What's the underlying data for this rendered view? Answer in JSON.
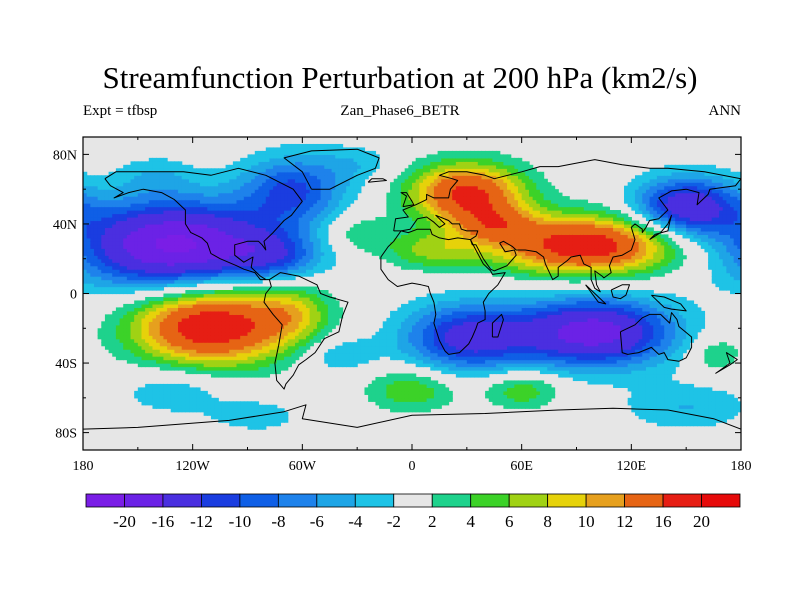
{
  "title": "Streamfunction Perturbation at 200 hPa (km2/s)",
  "left_string": "Expt = tfbsp",
  "center_string": "Zan_Phase6_BETR",
  "right_string": "ANN",
  "map": {
    "projection": "cylindrical-equidistant",
    "lon_range": [
      -180,
      180
    ],
    "lat_range": [
      -90,
      90
    ],
    "lon_ticks": [
      {
        "value": -180,
        "label": "180"
      },
      {
        "value": -120,
        "label": "120W"
      },
      {
        "value": -60,
        "label": "60W"
      },
      {
        "value": 0,
        "label": "0"
      },
      {
        "value": 60,
        "label": "60E"
      },
      {
        "value": 120,
        "label": "120E"
      },
      {
        "value": 180,
        "label": "180"
      }
    ],
    "lat_ticks": [
      {
        "value": 80,
        "label": "80N"
      },
      {
        "value": 40,
        "label": "40N"
      },
      {
        "value": 0,
        "label": "0"
      },
      {
        "value": -40,
        "label": "40S"
      },
      {
        "value": -80,
        "label": "80S"
      }
    ],
    "background_color": "#e6e6e6",
    "coastline_color": "#000000"
  },
  "colorbar": {
    "levels": [
      "-20",
      "-16",
      "-12",
      "-10",
      "-8",
      "-6",
      "-4",
      "-2",
      "2",
      "4",
      "6",
      "8",
      "10",
      "12",
      "16",
      "20"
    ],
    "colors": [
      "#7a1ee6",
      "#6b22e6",
      "#4a2fe0",
      "#1a3de0",
      "#0f5fe6",
      "#1e82eb",
      "#1ea5e6",
      "#1ec3e6",
      "#e6e6e6",
      "#1ed28c",
      "#3cd228",
      "#a0d214",
      "#e6d20a",
      "#e6a01e",
      "#e66414",
      "#e61e14",
      "#e60a0a"
    ]
  },
  "field_blobs": [
    {
      "lon": -130,
      "lat": 28,
      "value": -21,
      "sx": 38,
      "sy": 18
    },
    {
      "lon": -75,
      "lat": 22,
      "value": -7,
      "sx": 18,
      "sy": 10
    },
    {
      "lon": -65,
      "lat": 60,
      "value": -10,
      "sx": 20,
      "sy": 14
    },
    {
      "lon": -140,
      "lat": 68,
      "value": -3,
      "sx": 15,
      "sy": 8
    },
    {
      "lon": -30,
      "lat": 75,
      "value": -3,
      "sx": 15,
      "sy": 8
    },
    {
      "lon": -110,
      "lat": -18,
      "value": 20,
      "sx": 30,
      "sy": 16
    },
    {
      "lon": -65,
      "lat": -10,
      "value": 6,
      "sx": 15,
      "sy": 12
    },
    {
      "lon": -130,
      "lat": -55,
      "value": -4,
      "sx": 20,
      "sy": 10
    },
    {
      "lon": -85,
      "lat": -70,
      "value": -3,
      "sx": 20,
      "sy": 8
    },
    {
      "lon": -40,
      "lat": -35,
      "value": -4,
      "sx": 14,
      "sy": 8
    },
    {
      "lon": 0,
      "lat": -55,
      "value": 6,
      "sx": 18,
      "sy": 9
    },
    {
      "lon": 30,
      "lat": 58,
      "value": 17,
      "sx": 22,
      "sy": 12
    },
    {
      "lon": 45,
      "lat": 40,
      "value": 8,
      "sx": 16,
      "sy": 8
    },
    {
      "lon": 95,
      "lat": 28,
      "value": 19,
      "sx": 35,
      "sy": 12
    },
    {
      "lon": 10,
      "lat": 25,
      "value": 6,
      "sx": 18,
      "sy": 8
    },
    {
      "lon": -30,
      "lat": 35,
      "value": 4,
      "sx": 14,
      "sy": 8
    },
    {
      "lon": 30,
      "lat": -25,
      "value": -13,
      "sx": 25,
      "sy": 14
    },
    {
      "lon": 100,
      "lat": -22,
      "value": -18,
      "sx": 30,
      "sy": 14
    },
    {
      "lon": 150,
      "lat": 50,
      "value": -15,
      "sx": 20,
      "sy": 12
    },
    {
      "lon": 150,
      "lat": -65,
      "value": -4,
      "sx": 25,
      "sy": 10
    },
    {
      "lon": 60,
      "lat": -55,
      "value": 6,
      "sx": 15,
      "sy": 8
    },
    {
      "lon": 165,
      "lat": -35,
      "value": 4,
      "sx": 10,
      "sy": 8
    }
  ]
}
